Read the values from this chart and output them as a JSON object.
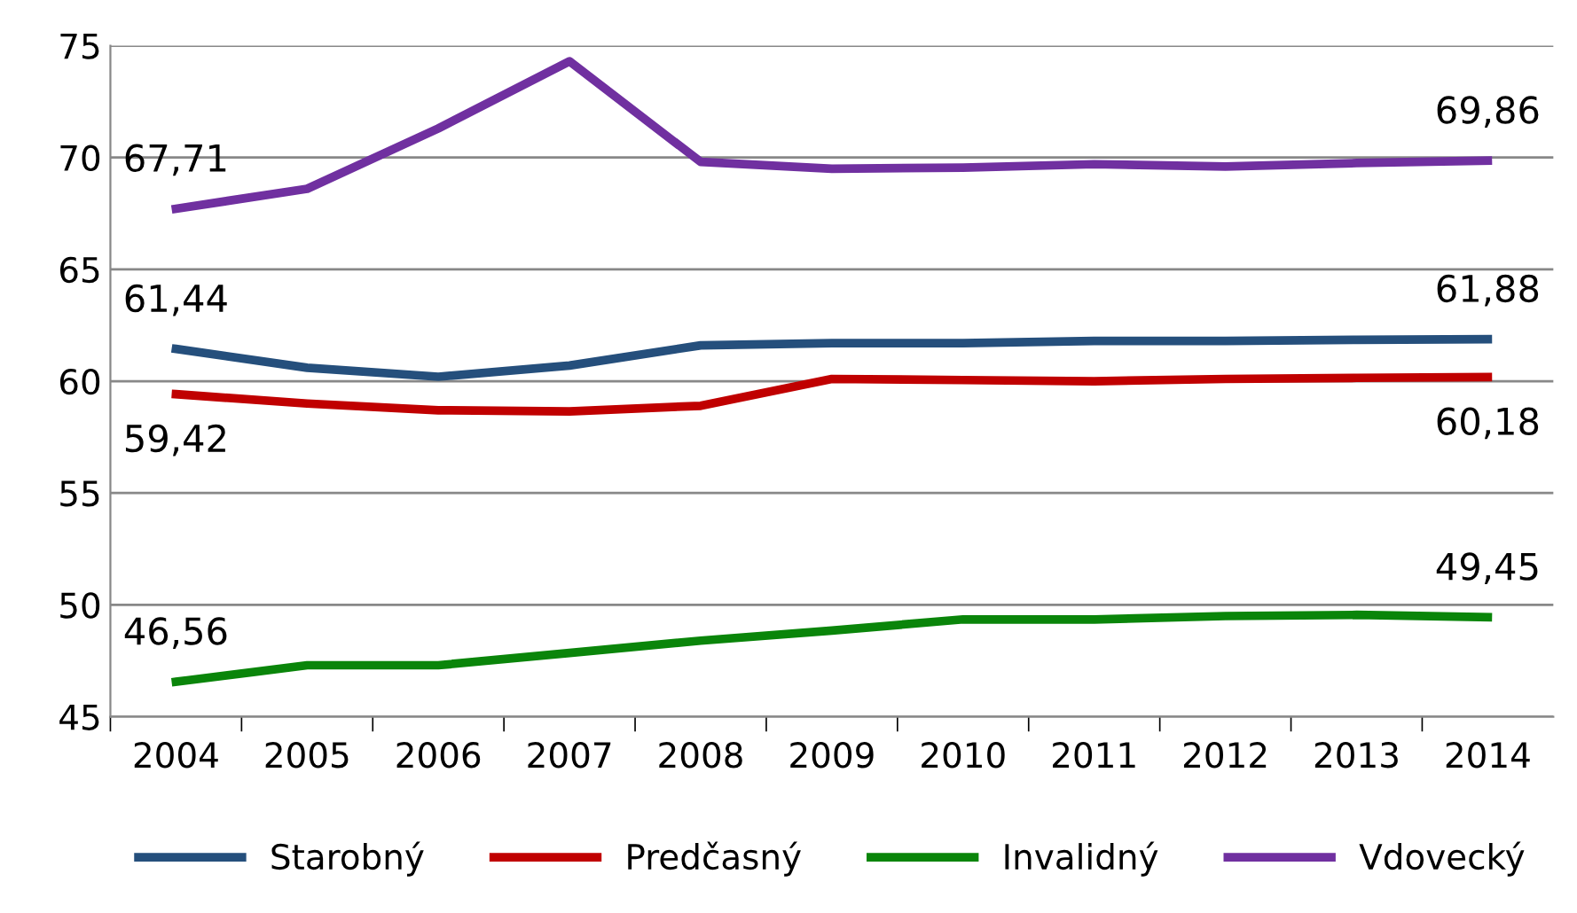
{
  "chart_data": {
    "type": "line",
    "categories": [
      "2004",
      "2005",
      "2006",
      "2007",
      "2008",
      "2009",
      "2010",
      "2011",
      "2012",
      "2013",
      "2014"
    ],
    "series": [
      {
        "name": "Starobný",
        "color": "#254f7c",
        "values": [
          61.44,
          60.6,
          60.2,
          60.7,
          61.6,
          61.7,
          61.7,
          61.8,
          61.8,
          61.85,
          61.88
        ],
        "value_labels": [
          "61,44",
          null,
          null,
          null,
          null,
          null,
          null,
          null,
          null,
          null,
          "61,88"
        ]
      },
      {
        "name": "Predčasný",
        "color": "#c00000",
        "values": [
          59.42,
          59.0,
          58.7,
          58.65,
          58.9,
          60.1,
          60.05,
          60.0,
          60.1,
          60.15,
          60.18
        ],
        "value_labels": [
          "59,42",
          null,
          null,
          null,
          null,
          null,
          null,
          null,
          null,
          null,
          "60,18"
        ]
      },
      {
        "name": "Invalidný",
        "color": "#0a850a",
        "values": [
          46.56,
          47.3,
          47.3,
          47.85,
          48.4,
          48.85,
          49.35,
          49.35,
          49.5,
          49.55,
          49.45
        ],
        "value_labels": [
          "46,56",
          null,
          null,
          null,
          null,
          null,
          null,
          null,
          null,
          null,
          "49,45"
        ]
      },
      {
        "name": "Vdovecký",
        "color": "#7030a0",
        "values": [
          67.71,
          68.6,
          71.3,
          74.3,
          69.8,
          69.5,
          69.55,
          69.7,
          69.6,
          69.75,
          69.86
        ],
        "value_labels": [
          "67,71",
          null,
          null,
          null,
          null,
          null,
          null,
          null,
          null,
          null,
          "69,86"
        ]
      }
    ],
    "ylim": [
      45,
      75
    ],
    "yticks": [
      45,
      50,
      55,
      60,
      65,
      70,
      75
    ],
    "grid": "y",
    "legend": "bottom",
    "marker": "none",
    "line_style": "solid"
  }
}
